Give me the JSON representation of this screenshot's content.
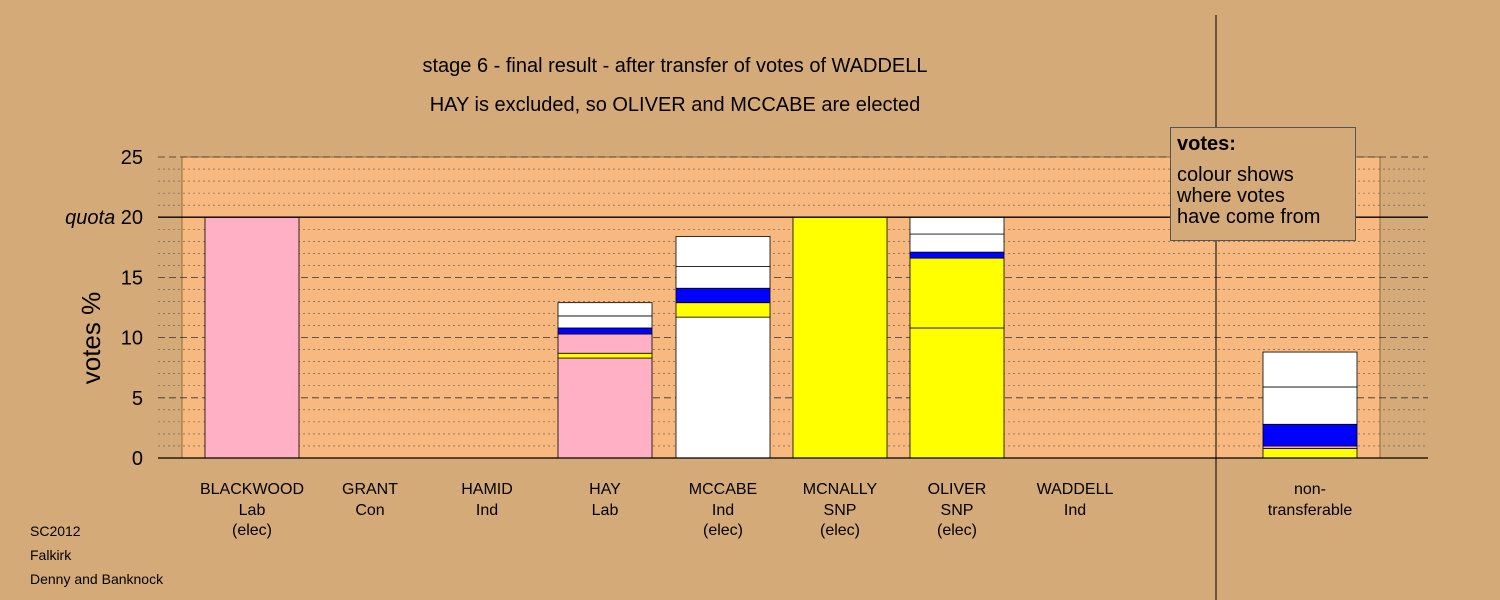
{
  "title_line1": "stage 6 - final result - after transfer of votes of WADDELL",
  "title_line2": "HAY is excluded, so OLIVER and MCCABE are elected",
  "footer": [
    "SC2012",
    "Falkirk",
    "Denny and Banknock"
  ],
  "legend": {
    "heading": "votes:",
    "lines": [
      "colour shows",
      "where votes",
      "have come from"
    ]
  },
  "colors": {
    "background": "#d4aa78",
    "plot_area": "#f7b97f",
    "Lab": "#ffb0c4",
    "SNP": "#ffff00",
    "Con": "#0000ff",
    "Ind": "#ffffff"
  },
  "chart_data": {
    "type": "bar",
    "stacked": true,
    "ylabel": "votes %",
    "ylim": [
      0,
      25
    ],
    "yticks": [
      0,
      5,
      10,
      15,
      25
    ],
    "quota": {
      "label": "quota",
      "value": 20
    },
    "candidates": [
      {
        "name": "BLACKWOOD",
        "party": "Lab",
        "status": "(elec)",
        "segments": [
          {
            "color": "Lab",
            "value": 20.0
          }
        ]
      },
      {
        "name": "GRANT",
        "party": "Con",
        "status": "",
        "segments": []
      },
      {
        "name": "HAMID",
        "party": "Ind",
        "status": "",
        "segments": []
      },
      {
        "name": "HAY",
        "party": "Lab",
        "status": "",
        "segments": [
          {
            "color": "Lab",
            "value": 8.3
          },
          {
            "color": "SNP",
            "value": 0.4
          },
          {
            "color": "Lab",
            "value": 1.6
          },
          {
            "color": "Con",
            "value": 0.5
          },
          {
            "color": "Ind",
            "value": 1.0
          },
          {
            "color": "Ind",
            "value": 1.1
          }
        ]
      },
      {
        "name": "MCCABE",
        "party": "Ind",
        "status": "(elec)",
        "segments": [
          {
            "color": "Ind",
            "value": 11.7
          },
          {
            "color": "SNP",
            "value": 1.2
          },
          {
            "color": "Con",
            "value": 1.2
          },
          {
            "color": "Ind",
            "value": 1.8
          },
          {
            "color": "Ind",
            "value": 2.5
          }
        ]
      },
      {
        "name": "MCNALLY",
        "party": "SNP",
        "status": "(elec)",
        "segments": [
          {
            "color": "SNP",
            "value": 20.0
          }
        ]
      },
      {
        "name": "OLIVER",
        "party": "SNP",
        "status": "(elec)",
        "segments": [
          {
            "color": "SNP",
            "value": 10.8
          },
          {
            "color": "SNP",
            "value": 5.8
          },
          {
            "color": "Con",
            "value": 0.5
          },
          {
            "color": "Ind",
            "value": 1.5
          },
          {
            "color": "Ind",
            "value": 1.4
          }
        ]
      },
      {
        "name": "WADDELL",
        "party": "Ind",
        "status": "",
        "segments": []
      },
      {
        "name": "non-",
        "party": "transferable",
        "status": "",
        "segments": [
          {
            "color": "SNP",
            "value": 0.8
          },
          {
            "color": "Lab",
            "value": 0.2
          },
          {
            "color": "Con",
            "value": 1.8
          },
          {
            "color": "Ind",
            "value": 3.1
          },
          {
            "color": "Ind",
            "value": 2.9
          }
        ]
      }
    ]
  }
}
